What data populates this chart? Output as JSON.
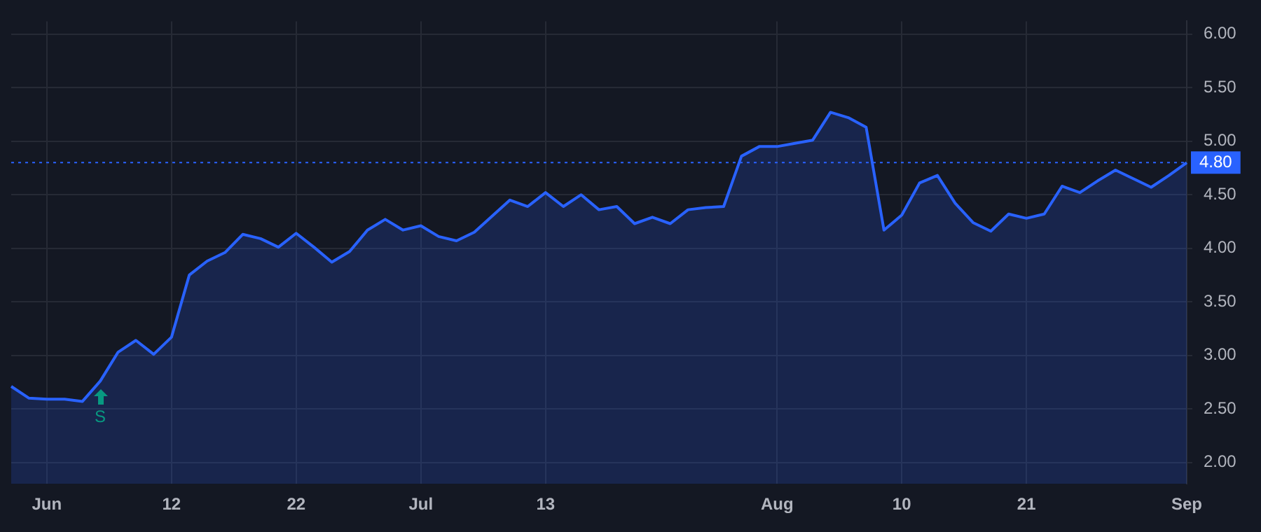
{
  "chart_data": {
    "type": "area",
    "categories": [
      null,
      null,
      "Jun",
      null,
      null,
      null,
      null,
      null,
      null,
      "12",
      null,
      null,
      null,
      null,
      null,
      null,
      "22",
      null,
      null,
      null,
      null,
      null,
      null,
      "Jul",
      null,
      null,
      null,
      null,
      null,
      null,
      "13",
      null,
      null,
      null,
      null,
      null,
      null,
      null,
      null,
      null,
      null,
      null,
      null,
      "Aug",
      null,
      null,
      null,
      null,
      null,
      null,
      "10",
      null,
      null,
      null,
      null,
      null,
      null,
      "21",
      null,
      null,
      null,
      null,
      null,
      null,
      null,
      null,
      "Sep"
    ],
    "series": [
      {
        "color": "#2962ff",
        "values": [
          2.71,
          2.6,
          2.59,
          2.59,
          2.57,
          2.76,
          3.03,
          3.14,
          3.01,
          3.17,
          3.75,
          3.88,
          3.96,
          4.13,
          4.09,
          4.01,
          4.14,
          4.01,
          3.87,
          3.97,
          4.17,
          4.27,
          4.17,
          4.21,
          4.11,
          4.07,
          4.15,
          4.3,
          4.45,
          4.39,
          4.52,
          4.39,
          4.5,
          4.36,
          4.39,
          4.23,
          4.29,
          4.23,
          4.36,
          4.38,
          4.39,
          4.86,
          4.95,
          4.95,
          4.98,
          5.01,
          5.27,
          5.22,
          5.13,
          4.17,
          4.31,
          4.61,
          4.68,
          4.42,
          4.24,
          4.16,
          4.32,
          4.28,
          4.32,
          4.58,
          4.52,
          4.63,
          4.73,
          4.65,
          4.57,
          4.68,
          4.8
        ]
      }
    ],
    "ylim": [
      1.8,
      6.12
    ],
    "yticks": [
      {
        "value": 2,
        "label": "2.00"
      },
      {
        "value": 2.5,
        "label": "2.50"
      },
      {
        "value": 3,
        "label": "3.00"
      },
      {
        "value": 3.5,
        "label": "3.50"
      },
      {
        "value": 4,
        "label": "4.00"
      },
      {
        "value": 4.5,
        "label": "4.50"
      },
      {
        "value": 5,
        "label": "5.00"
      },
      {
        "value": 5.5,
        "label": "5.50"
      },
      {
        "value": 6,
        "label": "6.00"
      }
    ],
    "ref_lines": [
      {
        "axis": "y",
        "value": 4.8,
        "label": "4.80",
        "color": "#2962ff",
        "line_style": "dotted"
      }
    ],
    "annotations": [
      "S"
    ],
    "grid": true
  }
}
